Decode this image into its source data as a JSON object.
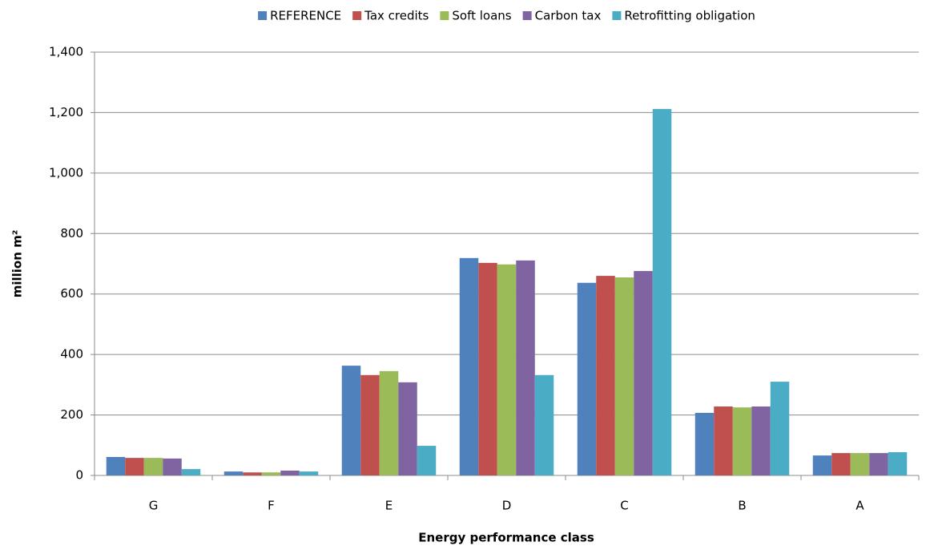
{
  "chart_data": {
    "type": "bar",
    "y_label": "million m²",
    "x_label": "Energy performance class",
    "categories": [
      "G",
      "F",
      "E",
      "D",
      "C",
      "B",
      "A"
    ],
    "series": [
      {
        "name": "REFERENCE",
        "color": "#4f81bd",
        "values": [
          61,
          13,
          363,
          719,
          637,
          207,
          66
        ]
      },
      {
        "name": "Tax credits",
        "color": "#c0504d",
        "values": [
          58,
          10,
          332,
          703,
          660,
          228,
          74
        ]
      },
      {
        "name": "Soft loans",
        "color": "#9bbb59",
        "values": [
          58,
          10,
          345,
          698,
          655,
          225,
          74
        ]
      },
      {
        "name": "Carbon tax",
        "color": "#8064a2",
        "values": [
          56,
          16,
          308,
          711,
          676,
          228,
          74
        ]
      },
      {
        "name": "Retrofitting obligation",
        "color": "#4bacc6",
        "values": [
          21,
          13,
          98,
          332,
          1212,
          310,
          77
        ]
      }
    ],
    "ylim": [
      0,
      1400
    ],
    "yticks": [
      0,
      200,
      400,
      600,
      800,
      {
        "value": 1000,
        "label": "1,000"
      },
      {
        "value": 1200,
        "label": "1,200"
      },
      {
        "value": 1400,
        "label": "1,400"
      }
    ],
    "grid": true,
    "legend": "top"
  }
}
